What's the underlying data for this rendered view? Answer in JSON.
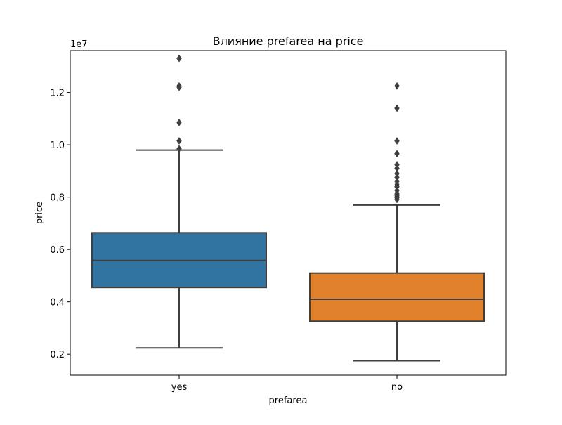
{
  "chart_data": {
    "type": "boxplot",
    "title": "Влияние prefarea на price",
    "xlabel": "prefarea",
    "ylabel": "price",
    "y_offset_label": "1e7",
    "y_scale": 10000000,
    "ylim": [
      0.12,
      1.36
    ],
    "yticks": [
      0.2,
      0.4,
      0.6,
      0.8,
      1.0,
      1.2
    ],
    "ytick_labels": [
      "0.2",
      "0.4",
      "0.6",
      "0.8",
      "1.0",
      "1.2"
    ],
    "grid": false,
    "categories": [
      "yes",
      "no"
    ],
    "boxes": [
      {
        "category": "yes",
        "color": "#3274a1",
        "whisker_low": 0.224,
        "q1": 0.455,
        "median": 0.558,
        "q3": 0.664,
        "whisker_high": 0.98,
        "outliers": [
          1.33,
          1.225,
          1.22,
          1.085,
          1.015,
          0.985
        ]
      },
      {
        "category": "no",
        "color": "#e1812c",
        "whisker_low": 0.175,
        "q1": 0.326,
        "median": 0.41,
        "q3": 0.51,
        "whisker_high": 0.77,
        "outliers": [
          1.225,
          1.14,
          1.015,
          0.966,
          0.924,
          0.91,
          0.89,
          0.875,
          0.861,
          0.847,
          0.84,
          0.826,
          0.812,
          0.805,
          0.798,
          0.791
        ]
      }
    ],
    "line_color": "#3f3f3f"
  }
}
